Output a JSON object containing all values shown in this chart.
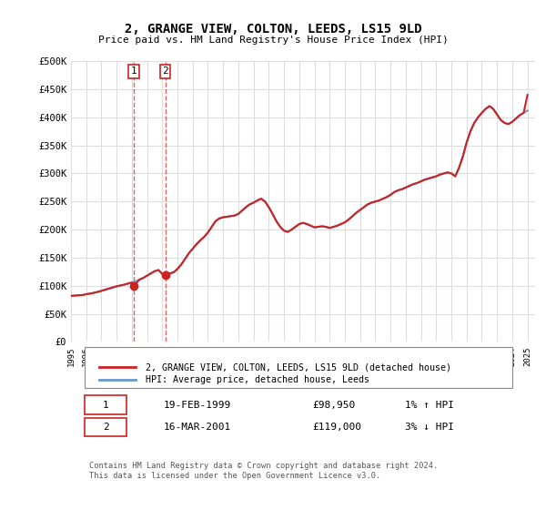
{
  "title": "2, GRANGE VIEW, COLTON, LEEDS, LS15 9LD",
  "subtitle": "Price paid vs. HM Land Registry's House Price Index (HPI)",
  "ylabel_ticks": [
    "£0",
    "£50K",
    "£100K",
    "£150K",
    "£200K",
    "£250K",
    "£300K",
    "£350K",
    "£400K",
    "£450K",
    "£500K"
  ],
  "ytick_values": [
    0,
    50000,
    100000,
    150000,
    200000,
    250000,
    300000,
    350000,
    400000,
    450000,
    500000
  ],
  "ylim": [
    0,
    500000
  ],
  "xlim_start": 1995.0,
  "xlim_end": 2025.5,
  "hpi_color": "#6699cc",
  "price_color": "#cc2222",
  "transaction1": {
    "date_x": 1999.13,
    "price": 98950,
    "label": "1"
  },
  "transaction2": {
    "date_x": 2001.21,
    "price": 119000,
    "label": "2"
  },
  "legend_label_red": "2, GRANGE VIEW, COLTON, LEEDS, LS15 9LD (detached house)",
  "legend_label_blue": "HPI: Average price, detached house, Leeds",
  "table_row1": [
    "1",
    "19-FEB-1999",
    "£98,950",
    "1% ↑ HPI"
  ],
  "table_row2": [
    "2",
    "16-MAR-2001",
    "£119,000",
    "3% ↓ HPI"
  ],
  "footnote": "Contains HM Land Registry data © Crown copyright and database right 2024.\nThis data is licensed under the Open Government Licence v3.0.",
  "background_color": "#ffffff",
  "grid_color": "#dddddd",
  "hpi_data_x": [
    1995.0,
    1995.25,
    1995.5,
    1995.75,
    1996.0,
    1996.25,
    1996.5,
    1996.75,
    1997.0,
    1997.25,
    1997.5,
    1997.75,
    1998.0,
    1998.25,
    1998.5,
    1998.75,
    1999.0,
    1999.25,
    1999.5,
    1999.75,
    2000.0,
    2000.25,
    2000.5,
    2000.75,
    2001.0,
    2001.25,
    2001.5,
    2001.75,
    2002.0,
    2002.25,
    2002.5,
    2002.75,
    2003.0,
    2003.25,
    2003.5,
    2003.75,
    2004.0,
    2004.25,
    2004.5,
    2004.75,
    2005.0,
    2005.25,
    2005.5,
    2005.75,
    2006.0,
    2006.25,
    2006.5,
    2006.75,
    2007.0,
    2007.25,
    2007.5,
    2007.75,
    2008.0,
    2008.25,
    2008.5,
    2008.75,
    2009.0,
    2009.25,
    2009.5,
    2009.75,
    2010.0,
    2010.25,
    2010.5,
    2010.75,
    2011.0,
    2011.25,
    2011.5,
    2011.75,
    2012.0,
    2012.25,
    2012.5,
    2012.75,
    2013.0,
    2013.25,
    2013.5,
    2013.75,
    2014.0,
    2014.25,
    2014.5,
    2014.75,
    2015.0,
    2015.25,
    2015.5,
    2015.75,
    2016.0,
    2016.25,
    2016.5,
    2016.75,
    2017.0,
    2017.25,
    2017.5,
    2017.75,
    2018.0,
    2018.25,
    2018.5,
    2018.75,
    2019.0,
    2019.25,
    2019.5,
    2019.75,
    2020.0,
    2020.25,
    2020.5,
    2020.75,
    2021.0,
    2021.25,
    2021.5,
    2021.75,
    2022.0,
    2022.25,
    2022.5,
    2022.75,
    2023.0,
    2023.25,
    2023.5,
    2023.75,
    2024.0,
    2024.25,
    2024.5,
    2024.75,
    2025.0
  ],
  "hpi_data_y": [
    82000,
    82500,
    83000,
    83500,
    85000,
    86000,
    87500,
    89000,
    91000,
    93000,
    95000,
    97000,
    99000,
    100500,
    102000,
    104000,
    106000,
    108000,
    111000,
    114000,
    118000,
    122000,
    126000,
    128000,
    121000,
    120000,
    122000,
    124000,
    130000,
    138000,
    148000,
    158000,
    166000,
    174000,
    181000,
    187000,
    195000,
    205000,
    215000,
    220000,
    222000,
    223000,
    224000,
    225000,
    228000,
    234000,
    240000,
    245000,
    248000,
    252000,
    255000,
    250000,
    240000,
    228000,
    215000,
    205000,
    198000,
    196000,
    200000,
    205000,
    210000,
    212000,
    210000,
    207000,
    204000,
    205000,
    206000,
    205000,
    203000,
    205000,
    207000,
    210000,
    213000,
    218000,
    224000,
    230000,
    235000,
    240000,
    245000,
    248000,
    250000,
    252000,
    255000,
    258000,
    262000,
    267000,
    270000,
    272000,
    275000,
    278000,
    281000,
    283000,
    286000,
    289000,
    291000,
    293000,
    295000,
    298000,
    300000,
    302000,
    300000,
    295000,
    310000,
    330000,
    355000,
    375000,
    390000,
    400000,
    408000,
    415000,
    420000,
    415000,
    405000,
    395000,
    390000,
    388000,
    392000,
    398000,
    404000,
    408000,
    412000
  ],
  "price_data_x": [
    1995.0,
    1995.25,
    1995.5,
    1995.75,
    1996.0,
    1996.25,
    1996.5,
    1996.75,
    1997.0,
    1997.25,
    1997.5,
    1997.75,
    1998.0,
    1998.25,
    1998.5,
    1998.75,
    1999.0,
    1999.13,
    1999.5,
    1999.75,
    2000.0,
    2000.25,
    2000.5,
    2000.75,
    2001.0,
    2001.21,
    2001.5,
    2001.75,
    2002.0,
    2002.25,
    2002.5,
    2002.75,
    2003.0,
    2003.25,
    2003.5,
    2003.75,
    2004.0,
    2004.25,
    2004.5,
    2004.75,
    2005.0,
    2005.25,
    2005.5,
    2005.75,
    2006.0,
    2006.25,
    2006.5,
    2006.75,
    2007.0,
    2007.25,
    2007.5,
    2007.75,
    2008.0,
    2008.25,
    2008.5,
    2008.75,
    2009.0,
    2009.25,
    2009.5,
    2009.75,
    2010.0,
    2010.25,
    2010.5,
    2010.75,
    2011.0,
    2011.25,
    2011.5,
    2011.75,
    2012.0,
    2012.25,
    2012.5,
    2012.75,
    2013.0,
    2013.25,
    2013.5,
    2013.75,
    2014.0,
    2014.25,
    2014.5,
    2014.75,
    2015.0,
    2015.25,
    2015.5,
    2015.75,
    2016.0,
    2016.25,
    2016.5,
    2016.75,
    2017.0,
    2017.25,
    2017.5,
    2017.75,
    2018.0,
    2018.25,
    2018.5,
    2018.75,
    2019.0,
    2019.25,
    2019.5,
    2019.75,
    2020.0,
    2020.25,
    2020.5,
    2020.75,
    2021.0,
    2021.25,
    2021.5,
    2021.75,
    2022.0,
    2022.25,
    2022.5,
    2022.75,
    2023.0,
    2023.25,
    2023.5,
    2023.75,
    2024.0,
    2024.25,
    2024.5,
    2024.75,
    2025.0
  ],
  "price_data_y": [
    82000,
    82500,
    83000,
    83500,
    85000,
    86000,
    87500,
    89000,
    91000,
    93000,
    95000,
    97000,
    99000,
    100500,
    102000,
    104000,
    105500,
    98950,
    111000,
    114000,
    118000,
    122000,
    126000,
    128000,
    121000,
    119000,
    122000,
    124000,
    130000,
    138000,
    148000,
    158000,
    166000,
    174000,
    181000,
    187000,
    195000,
    205000,
    215000,
    220000,
    222000,
    223000,
    224000,
    225000,
    228000,
    234000,
    240000,
    245000,
    248000,
    252000,
    255000,
    250000,
    240000,
    228000,
    215000,
    205000,
    198000,
    196000,
    200000,
    205000,
    210000,
    212000,
    210000,
    207000,
    204000,
    205000,
    206000,
    205000,
    203000,
    205000,
    207000,
    210000,
    213000,
    218000,
    224000,
    230000,
    235000,
    240000,
    245000,
    248000,
    250000,
    252000,
    255000,
    258000,
    262000,
    267000,
    270000,
    272000,
    275000,
    278000,
    281000,
    283000,
    286000,
    289000,
    291000,
    293000,
    295000,
    298000,
    300000,
    302000,
    300000,
    295000,
    310000,
    330000,
    355000,
    375000,
    390000,
    400000,
    408000,
    415000,
    420000,
    415000,
    405000,
    395000,
    390000,
    388000,
    392000,
    398000,
    404000,
    408000,
    440000
  ]
}
